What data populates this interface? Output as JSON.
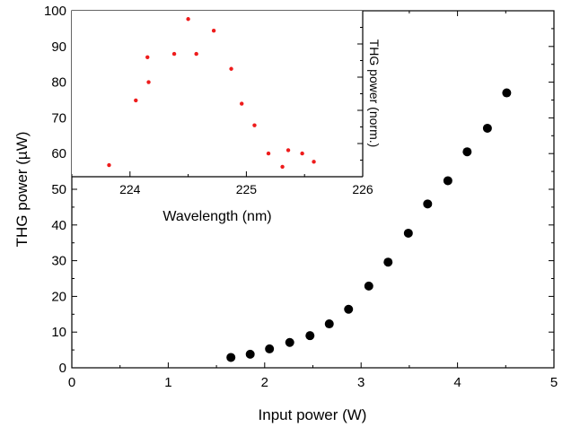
{
  "chart_data": [
    {
      "type": "scatter",
      "xlabel": "Input power (W)",
      "ylabel": "THG power (µW)",
      "xlim": [
        0,
        5
      ],
      "ylim": [
        0,
        100
      ],
      "x_ticks": [
        "0",
        "1",
        "2",
        "3",
        "4",
        "5"
      ],
      "y_ticks": [
        "0",
        "10",
        "20",
        "30",
        "40",
        "50",
        "60",
        "70",
        "80",
        "90",
        "100"
      ],
      "marker_color": "#000000",
      "series": [
        {
          "points": [
            {
              "x": 1.65,
              "y": 2.9
            },
            {
              "x": 1.85,
              "y": 3.8
            },
            {
              "x": 2.05,
              "y": 5.3
            },
            {
              "x": 2.26,
              "y": 7.1
            },
            {
              "x": 2.47,
              "y": 9.0
            },
            {
              "x": 2.67,
              "y": 12.3
            },
            {
              "x": 2.87,
              "y": 16.4
            },
            {
              "x": 3.08,
              "y": 22.9
            },
            {
              "x": 3.28,
              "y": 29.6
            },
            {
              "x": 3.49,
              "y": 37.7
            },
            {
              "x": 3.69,
              "y": 45.9
            },
            {
              "x": 3.9,
              "y": 52.4
            },
            {
              "x": 4.1,
              "y": 60.5
            },
            {
              "x": 4.31,
              "y": 67.1
            },
            {
              "x": 4.51,
              "y": 77.0
            }
          ]
        }
      ]
    },
    {
      "type": "scatter",
      "inset": true,
      "xlabel": "Wavelength (nm)",
      "ylabel": "THG power (norm.)",
      "xlim": [
        223.5,
        226
      ],
      "ylim": [
        50,
        100
      ],
      "x_ticks": [
        "224",
        "225",
        "226"
      ],
      "marker_color": "#ee1c1c",
      "series": [
        {
          "points": [
            {
              "x": 223.82,
              "y": 53.5
            },
            {
              "x": 224.05,
              "y": 73.0
            },
            {
              "x": 224.15,
              "y": 86.0
            },
            {
              "x": 224.16,
              "y": 78.5
            },
            {
              "x": 224.38,
              "y": 87.0
            },
            {
              "x": 224.5,
              "y": 97.5
            },
            {
              "x": 224.57,
              "y": 87.0
            },
            {
              "x": 224.72,
              "y": 94.0
            },
            {
              "x": 224.87,
              "y": 82.5
            },
            {
              "x": 224.96,
              "y": 72.0
            },
            {
              "x": 225.07,
              "y": 65.5
            },
            {
              "x": 225.19,
              "y": 57.0
            },
            {
              "x": 225.31,
              "y": 53.0
            },
            {
              "x": 225.36,
              "y": 58.0
            },
            {
              "x": 225.48,
              "y": 57.0
            },
            {
              "x": 225.58,
              "y": 54.5
            }
          ]
        }
      ]
    }
  ]
}
